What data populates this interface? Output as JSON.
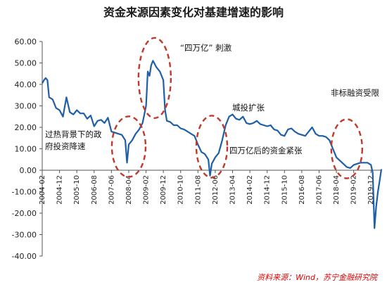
{
  "chart_data": {
    "type": "line",
    "title": "资金来源因素变化对基建增速的影响",
    "source_note": "资料来源：Wind，苏宁金融研究院",
    "xlabel": "",
    "ylabel": "",
    "ylim": [
      -40,
      60
    ],
    "y_ticks": [
      "60.00",
      "50.00",
      "40.00",
      "30.00",
      "20.00",
      "10.00",
      "0.00",
      "-10.00",
      "-20.00",
      "-30.00",
      "-40.00"
    ],
    "x_tick_labels": [
      "2004-02",
      "2004-12",
      "2005-10",
      "2006-08",
      "2007-06",
      "2008-04",
      "2009-02",
      "2009-12",
      "2010-10",
      "2011-08",
      "2012-06",
      "2013-04",
      "2014-02",
      "2014-12",
      "2015-10",
      "2016-08",
      "2017-06",
      "2018-04",
      "2019-02",
      "2019-12"
    ],
    "grid": "none",
    "legend": "none",
    "line_color": "#1f5fa8",
    "annotation_color": "#c0392b",
    "series": [
      {
        "values": [
          {
            "x": "2004-02",
            "y": 40.5
          },
          {
            "x": "2004-03",
            "y": 42.0
          },
          {
            "x": "2004-04",
            "y": 43.0
          },
          {
            "x": "2004-05",
            "y": 42.0
          },
          {
            "x": "2004-06",
            "y": 34.0
          },
          {
            "x": "2004-08",
            "y": 33.0
          },
          {
            "x": "2004-10",
            "y": 29.0
          },
          {
            "x": "2004-12",
            "y": 28.0
          },
          {
            "x": "2005-02",
            "y": 25.0
          },
          {
            "x": "2005-04",
            "y": 34.0
          },
          {
            "x": "2005-06",
            "y": 27.0
          },
          {
            "x": "2005-08",
            "y": 26.0
          },
          {
            "x": "2005-10",
            "y": 28.0
          },
          {
            "x": "2005-12",
            "y": 26.5
          },
          {
            "x": "2006-02",
            "y": 26.5
          },
          {
            "x": "2006-04",
            "y": 24.0
          },
          {
            "x": "2006-06",
            "y": 25.5
          },
          {
            "x": "2006-08",
            "y": 20.5
          },
          {
            "x": "2006-10",
            "y": 23.0
          },
          {
            "x": "2006-12",
            "y": 23.5
          },
          {
            "x": "2007-02",
            "y": 22.0
          },
          {
            "x": "2007-04",
            "y": 24.5
          },
          {
            "x": "2007-06",
            "y": 18.0
          },
          {
            "x": "2007-08",
            "y": 17.5
          },
          {
            "x": "2007-10",
            "y": 17.0
          },
          {
            "x": "2007-12",
            "y": 16.5
          },
          {
            "x": "2008-02",
            "y": 14.0
          },
          {
            "x": "2008-03",
            "y": 3.5
          },
          {
            "x": "2008-04",
            "y": 12.0
          },
          {
            "x": "2008-06",
            "y": 14.0
          },
          {
            "x": "2008-08",
            "y": 17.0
          },
          {
            "x": "2008-10",
            "y": 19.0
          },
          {
            "x": "2008-12",
            "y": 22.0
          },
          {
            "x": "2009-02",
            "y": 30.0
          },
          {
            "x": "2009-03",
            "y": 46.0
          },
          {
            "x": "2009-04",
            "y": 44.0
          },
          {
            "x": "2009-05",
            "y": 49.0
          },
          {
            "x": "2009-06",
            "y": 51.0
          },
          {
            "x": "2009-08",
            "y": 48.0
          },
          {
            "x": "2009-10",
            "y": 46.0
          },
          {
            "x": "2009-12",
            "y": 42.0
          },
          {
            "x": "2010-01",
            "y": 28.0
          },
          {
            "x": "2010-02",
            "y": 23.0
          },
          {
            "x": "2010-04",
            "y": 22.5
          },
          {
            "x": "2010-06",
            "y": 21.0
          },
          {
            "x": "2010-08",
            "y": 21.0
          },
          {
            "x": "2010-10",
            "y": 19.5
          },
          {
            "x": "2010-12",
            "y": 19.0
          },
          {
            "x": "2011-02",
            "y": 18.0
          },
          {
            "x": "2011-04",
            "y": 17.0
          },
          {
            "x": "2011-06",
            "y": 16.0
          },
          {
            "x": "2011-08",
            "y": 12.0
          },
          {
            "x": "2011-10",
            "y": 8.5
          },
          {
            "x": "2011-12",
            "y": 7.5
          },
          {
            "x": "2012-02",
            "y": 5.0
          },
          {
            "x": "2012-03",
            "y": -2.5
          },
          {
            "x": "2012-04",
            "y": 3.0
          },
          {
            "x": "2012-06",
            "y": 6.0
          },
          {
            "x": "2012-08",
            "y": 8.0
          },
          {
            "x": "2012-10",
            "y": 14.0
          },
          {
            "x": "2012-12",
            "y": 21.0
          },
          {
            "x": "2013-02",
            "y": 25.0
          },
          {
            "x": "2013-04",
            "y": 26.0
          },
          {
            "x": "2013-06",
            "y": 24.0
          },
          {
            "x": "2013-08",
            "y": 23.5
          },
          {
            "x": "2013-10",
            "y": 25.0
          },
          {
            "x": "2013-12",
            "y": 22.0
          },
          {
            "x": "2014-02",
            "y": 21.5
          },
          {
            "x": "2014-04",
            "y": 22.0
          },
          {
            "x": "2014-06",
            "y": 23.0
          },
          {
            "x": "2014-08",
            "y": 21.5
          },
          {
            "x": "2014-10",
            "y": 21.0
          },
          {
            "x": "2014-12",
            "y": 20.5
          },
          {
            "x": "2015-02",
            "y": 21.0
          },
          {
            "x": "2015-04",
            "y": 19.0
          },
          {
            "x": "2015-06",
            "y": 18.5
          },
          {
            "x": "2015-08",
            "y": 16.5
          },
          {
            "x": "2015-10",
            "y": 16.0
          },
          {
            "x": "2015-12",
            "y": 19.0
          },
          {
            "x": "2016-02",
            "y": 19.5
          },
          {
            "x": "2016-04",
            "y": 18.0
          },
          {
            "x": "2016-06",
            "y": 17.0
          },
          {
            "x": "2016-08",
            "y": 16.5
          },
          {
            "x": "2016-10",
            "y": 16.0
          },
          {
            "x": "2016-12",
            "y": 18.0
          },
          {
            "x": "2017-02",
            "y": 20.0
          },
          {
            "x": "2017-04",
            "y": 17.0
          },
          {
            "x": "2017-06",
            "y": 16.0
          },
          {
            "x": "2017-08",
            "y": 16.0
          },
          {
            "x": "2017-10",
            "y": 15.5
          },
          {
            "x": "2017-12",
            "y": 14.0
          },
          {
            "x": "2018-02",
            "y": 10.0
          },
          {
            "x": "2018-04",
            "y": 6.0
          },
          {
            "x": "2018-06",
            "y": 4.5
          },
          {
            "x": "2018-08",
            "y": 3.0
          },
          {
            "x": "2018-10",
            "y": 1.5
          },
          {
            "x": "2018-12",
            "y": 1.0
          },
          {
            "x": "2019-02",
            "y": 2.5
          },
          {
            "x": "2019-04",
            "y": 3.0
          },
          {
            "x": "2019-06",
            "y": 3.5
          },
          {
            "x": "2019-08",
            "y": 3.5
          },
          {
            "x": "2019-10",
            "y": 3.5
          },
          {
            "x": "2019-12",
            "y": 2.5
          },
          {
            "x": "2020-01",
            "y": -1.0
          },
          {
            "x": "2020-02",
            "y": -27.0
          },
          {
            "x": "2020-03",
            "y": -17.0
          },
          {
            "x": "2020-04",
            "y": -10.0
          },
          {
            "x": "2020-05",
            "y": -5.0
          },
          {
            "x": "2020-06",
            "y": 0.5
          }
        ]
      }
    ],
    "annotations": [
      {
        "label_lines": [
          "过热背景下的政",
          "府投资降速"
        ],
        "center": {
          "x": "2008-04",
          "y": 11
        }
      },
      {
        "label_lines": [
          "“四万亿” 刺激"
        ],
        "center": {
          "x": "2009-07",
          "y": 43
        }
      },
      {
        "label_lines": [
          "四万亿后的资金紧张"
        ],
        "center": {
          "x": "2012-04",
          "y": 11
        }
      },
      {
        "label_lines": [
          "城投扩张"
        ],
        "center": {
          "x": "2014-02",
          "y": 29
        }
      },
      {
        "label_lines": [
          "非标融资受限"
        ],
        "center": {
          "x": "2018-10",
          "y": 10
        }
      }
    ]
  }
}
